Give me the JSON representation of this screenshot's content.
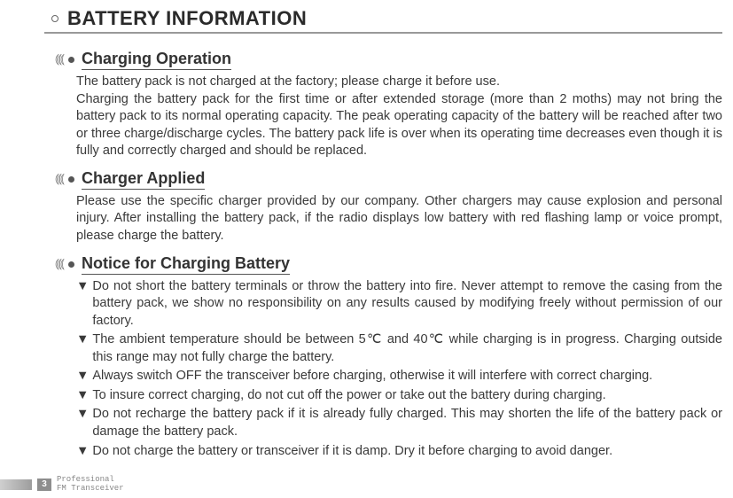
{
  "header": {
    "title": "BATTERY INFORMATION"
  },
  "sections": {
    "charging_op": {
      "title": "Charging Operation",
      "para": "The battery pack is not charged at the factory; please charge it before use.\nCharging the battery pack for the first time or after extended storage (more than 2 moths) may not bring the battery pack to its normal operating capacity. The peak operating capacity of the battery will be reached after two or three charge/discharge cycles. The battery pack life is over when its operating time decreases even though it is fully and correctly charged and should be replaced."
    },
    "charger_applied": {
      "title": "Charger Applied",
      "para": "Please use the specific charger provided by our company. Other chargers may cause explosion and personal injury. After installing the battery pack, if the radio displays low battery with red flashing lamp or voice prompt, please charge the battery."
    },
    "notice": {
      "title": "Notice for Charging Battery",
      "items": [
        "Do not short the battery terminals or throw the battery into fire. Never attempt to remove the casing from the battery pack, we show no responsibility on any results caused by modifying freely without permission of our factory.",
        "The ambient temperature should be between 5℃ and 40℃ while charging is in progress. Charging outside this range may not fully charge the battery.",
        "Always switch OFF the transceiver before charging, otherwise it will interfere with correct charging.",
        "To insure correct charging, do not cut off the power or take out the battery during charging.",
        "Do not recharge the battery pack if it is already fully charged. This may shorten the life of the battery pack or damage the battery pack.",
        "Do not charge the battery or transceiver if it is damp. Dry it before charging to avoid danger."
      ]
    }
  },
  "footer": {
    "page_number": "3",
    "line1": "Professional",
    "line2": "FM Transceiver"
  },
  "style": {
    "marker": "▼",
    "wave_glyph": "⦅⦅⦅"
  }
}
